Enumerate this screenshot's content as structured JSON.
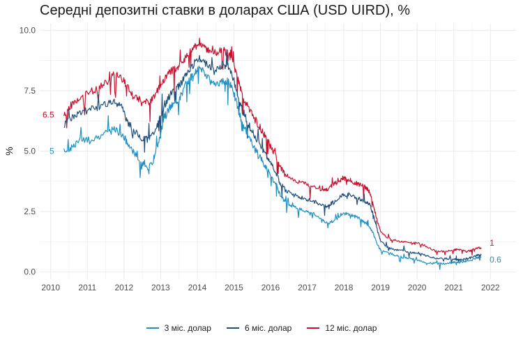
{
  "title": "Середні депозитні ставки в доларах США (USD UIRD), %",
  "colors": {
    "m3": "#1f8fc0",
    "m6": "#1f4e79",
    "m12": "#c8102e",
    "grid": "#ebebeb"
  },
  "chart_data": {
    "type": "line",
    "title": "Середні депозитні ставки в доларах США (USD UIRD), %",
    "xlabel": "",
    "ylabel": "%",
    "xlim": [
      2009.7,
      2022.7
    ],
    "ylim": [
      -0.3,
      10.3
    ],
    "x_ticks": [
      "2010",
      "2011",
      "2012",
      "2013",
      "2014",
      "2015",
      "2016",
      "2017",
      "2018",
      "2019",
      "2020",
      "2021",
      "2022"
    ],
    "y_ticks": [
      "0.0",
      "2.5",
      "5.0",
      "7.5",
      "10.0"
    ],
    "legend_position": "bottom",
    "grid": true,
    "series": [
      {
        "key": "m3",
        "name": "3 міс. долар",
        "start_label": "5",
        "end_label": "0.6",
        "points": [
          [
            2010.36,
            5.0
          ],
          [
            2010.55,
            5.1
          ],
          [
            2010.75,
            5.4
          ],
          [
            2011.0,
            5.5
          ],
          [
            2011.3,
            5.6
          ],
          [
            2011.55,
            5.8
          ],
          [
            2011.75,
            5.9
          ],
          [
            2011.95,
            5.7
          ],
          [
            2012.1,
            5.3
          ],
          [
            2012.3,
            4.9
          ],
          [
            2012.5,
            4.5
          ],
          [
            2012.65,
            4.3
          ],
          [
            2012.8,
            4.6
          ],
          [
            2012.95,
            5.4
          ],
          [
            2013.1,
            6.4
          ],
          [
            2013.25,
            6.8
          ],
          [
            2013.4,
            7.0
          ],
          [
            2013.55,
            7.3
          ],
          [
            2013.7,
            7.8
          ],
          [
            2013.85,
            8.1
          ],
          [
            2014.0,
            8.4
          ],
          [
            2014.15,
            8.4
          ],
          [
            2014.3,
            8.0
          ],
          [
            2014.5,
            7.8
          ],
          [
            2014.7,
            7.9
          ],
          [
            2014.85,
            7.9
          ],
          [
            2015.0,
            7.4
          ],
          [
            2015.1,
            6.8
          ],
          [
            2015.2,
            6.3
          ],
          [
            2015.35,
            5.8
          ],
          [
            2015.5,
            5.3
          ],
          [
            2015.7,
            4.8
          ],
          [
            2015.85,
            4.4
          ],
          [
            2016.0,
            4.0
          ],
          [
            2016.15,
            3.6
          ],
          [
            2016.25,
            3.2
          ],
          [
            2016.4,
            2.9
          ],
          [
            2016.6,
            2.7
          ],
          [
            2016.8,
            2.6
          ],
          [
            2017.0,
            2.5
          ],
          [
            2017.2,
            2.4
          ],
          [
            2017.4,
            2.2
          ],
          [
            2017.55,
            2.0
          ],
          [
            2017.7,
            2.1
          ],
          [
            2017.9,
            2.3
          ],
          [
            2018.0,
            2.4
          ],
          [
            2018.15,
            2.4
          ],
          [
            2018.3,
            2.3
          ],
          [
            2018.45,
            2.2
          ],
          [
            2018.6,
            2.0
          ],
          [
            2018.7,
            1.9
          ],
          [
            2018.8,
            1.6
          ],
          [
            2018.9,
            1.2
          ],
          [
            2019.0,
            0.9
          ],
          [
            2019.2,
            0.8
          ],
          [
            2019.4,
            0.7
          ],
          [
            2019.6,
            0.6
          ],
          [
            2019.8,
            0.55
          ],
          [
            2020.0,
            0.5
          ],
          [
            2020.2,
            0.4
          ],
          [
            2020.4,
            0.35
          ],
          [
            2020.6,
            0.35
          ],
          [
            2020.8,
            0.35
          ],
          [
            2021.0,
            0.4
          ],
          [
            2021.1,
            0.4
          ],
          [
            2021.2,
            0.4
          ],
          [
            2021.35,
            0.45
          ],
          [
            2021.5,
            0.5
          ],
          [
            2021.65,
            0.6
          ],
          [
            2021.75,
            0.6
          ]
        ]
      },
      {
        "key": "m6",
        "name": "6 міс. долар",
        "start_label": "",
        "end_label": "",
        "points": [
          [
            2010.36,
            6.1
          ],
          [
            2010.55,
            6.4
          ],
          [
            2010.75,
            6.6
          ],
          [
            2011.0,
            6.7
          ],
          [
            2011.3,
            6.8
          ],
          [
            2011.55,
            7.0
          ],
          [
            2011.75,
            7.0
          ],
          [
            2011.95,
            6.8
          ],
          [
            2012.1,
            6.2
          ],
          [
            2012.3,
            5.8
          ],
          [
            2012.5,
            5.5
          ],
          [
            2012.65,
            5.5
          ],
          [
            2012.8,
            5.7
          ],
          [
            2012.95,
            6.2
          ],
          [
            2013.1,
            6.9
          ],
          [
            2013.25,
            7.3
          ],
          [
            2013.4,
            7.5
          ],
          [
            2013.55,
            7.8
          ],
          [
            2013.7,
            8.2
          ],
          [
            2013.85,
            8.5
          ],
          [
            2014.0,
            8.8
          ],
          [
            2014.15,
            8.8
          ],
          [
            2014.3,
            8.5
          ],
          [
            2014.5,
            8.4
          ],
          [
            2014.7,
            8.6
          ],
          [
            2014.85,
            8.5
          ],
          [
            2015.0,
            7.9
          ],
          [
            2015.1,
            7.3
          ],
          [
            2015.2,
            6.8
          ],
          [
            2015.35,
            6.3
          ],
          [
            2015.5,
            5.8
          ],
          [
            2015.7,
            5.3
          ],
          [
            2015.85,
            4.9
          ],
          [
            2016.0,
            4.5
          ],
          [
            2016.15,
            4.1
          ],
          [
            2016.25,
            3.7
          ],
          [
            2016.4,
            3.4
          ],
          [
            2016.6,
            3.2
          ],
          [
            2016.8,
            3.1
          ],
          [
            2017.0,
            3.0
          ],
          [
            2017.2,
            2.9
          ],
          [
            2017.4,
            2.8
          ],
          [
            2017.55,
            2.7
          ],
          [
            2017.7,
            2.9
          ],
          [
            2017.9,
            3.1
          ],
          [
            2018.0,
            3.2
          ],
          [
            2018.15,
            3.2
          ],
          [
            2018.3,
            3.1
          ],
          [
            2018.45,
            3.0
          ],
          [
            2018.6,
            2.9
          ],
          [
            2018.7,
            2.8
          ],
          [
            2018.8,
            2.4
          ],
          [
            2018.9,
            1.8
          ],
          [
            2019.0,
            1.3
          ],
          [
            2019.2,
            1.0
          ],
          [
            2019.4,
            0.9
          ],
          [
            2019.6,
            0.9
          ],
          [
            2019.8,
            0.8
          ],
          [
            2020.0,
            0.8
          ],
          [
            2020.2,
            0.7
          ],
          [
            2020.4,
            0.6
          ],
          [
            2020.6,
            0.55
          ],
          [
            2020.8,
            0.55
          ],
          [
            2021.0,
            0.55
          ],
          [
            2021.1,
            0.5
          ],
          [
            2021.2,
            0.5
          ],
          [
            2021.35,
            0.55
          ],
          [
            2021.5,
            0.6
          ],
          [
            2021.65,
            0.7
          ],
          [
            2021.75,
            0.7
          ]
        ]
      },
      {
        "key": "m12",
        "name": "12 міс. долар",
        "start_label": "6.5",
        "end_label": "1",
        "points": [
          [
            2010.36,
            6.5
          ],
          [
            2010.55,
            6.9
          ],
          [
            2010.75,
            7.1
          ],
          [
            2011.0,
            7.4
          ],
          [
            2011.3,
            7.6
          ],
          [
            2011.55,
            7.9
          ],
          [
            2011.75,
            8.2
          ],
          [
            2011.95,
            8.0
          ],
          [
            2012.1,
            7.6
          ],
          [
            2012.3,
            7.3
          ],
          [
            2012.5,
            7.0
          ],
          [
            2012.65,
            7.0
          ],
          [
            2012.8,
            7.2
          ],
          [
            2012.95,
            7.6
          ],
          [
            2013.1,
            8.0
          ],
          [
            2013.25,
            8.3
          ],
          [
            2013.4,
            8.4
          ],
          [
            2013.55,
            8.6
          ],
          [
            2013.7,
            8.9
          ],
          [
            2013.85,
            9.2
          ],
          [
            2014.0,
            9.4
          ],
          [
            2014.15,
            9.3
          ],
          [
            2014.3,
            9.2
          ],
          [
            2014.5,
            9.1
          ],
          [
            2014.7,
            9.2
          ],
          [
            2014.85,
            9.0
          ],
          [
            2015.0,
            8.6
          ],
          [
            2015.1,
            8.0
          ],
          [
            2015.2,
            7.4
          ],
          [
            2015.35,
            6.9
          ],
          [
            2015.5,
            6.5
          ],
          [
            2015.7,
            6.0
          ],
          [
            2015.85,
            5.6
          ],
          [
            2016.0,
            5.2
          ],
          [
            2016.15,
            4.8
          ],
          [
            2016.25,
            4.4
          ],
          [
            2016.4,
            4.0
          ],
          [
            2016.6,
            3.8
          ],
          [
            2016.8,
            3.7
          ],
          [
            2017.0,
            3.6
          ],
          [
            2017.2,
            3.5
          ],
          [
            2017.4,
            3.4
          ],
          [
            2017.55,
            3.4
          ],
          [
            2017.7,
            3.6
          ],
          [
            2017.9,
            3.8
          ],
          [
            2018.0,
            3.9
          ],
          [
            2018.15,
            3.8
          ],
          [
            2018.3,
            3.7
          ],
          [
            2018.45,
            3.6
          ],
          [
            2018.6,
            3.5
          ],
          [
            2018.7,
            3.3
          ],
          [
            2018.8,
            2.8
          ],
          [
            2018.9,
            2.2
          ],
          [
            2019.0,
            1.7
          ],
          [
            2019.2,
            1.4
          ],
          [
            2019.4,
            1.3
          ],
          [
            2019.6,
            1.25
          ],
          [
            2019.8,
            1.2
          ],
          [
            2020.0,
            1.2
          ],
          [
            2020.2,
            1.1
          ],
          [
            2020.4,
            0.95
          ],
          [
            2020.6,
            0.85
          ],
          [
            2020.8,
            0.85
          ],
          [
            2021.0,
            0.9
          ],
          [
            2021.1,
            0.95
          ],
          [
            2021.2,
            0.9
          ],
          [
            2021.35,
            0.85
          ],
          [
            2021.5,
            0.9
          ],
          [
            2021.65,
            1.0
          ],
          [
            2021.75,
            1.0
          ]
        ]
      }
    ]
  }
}
